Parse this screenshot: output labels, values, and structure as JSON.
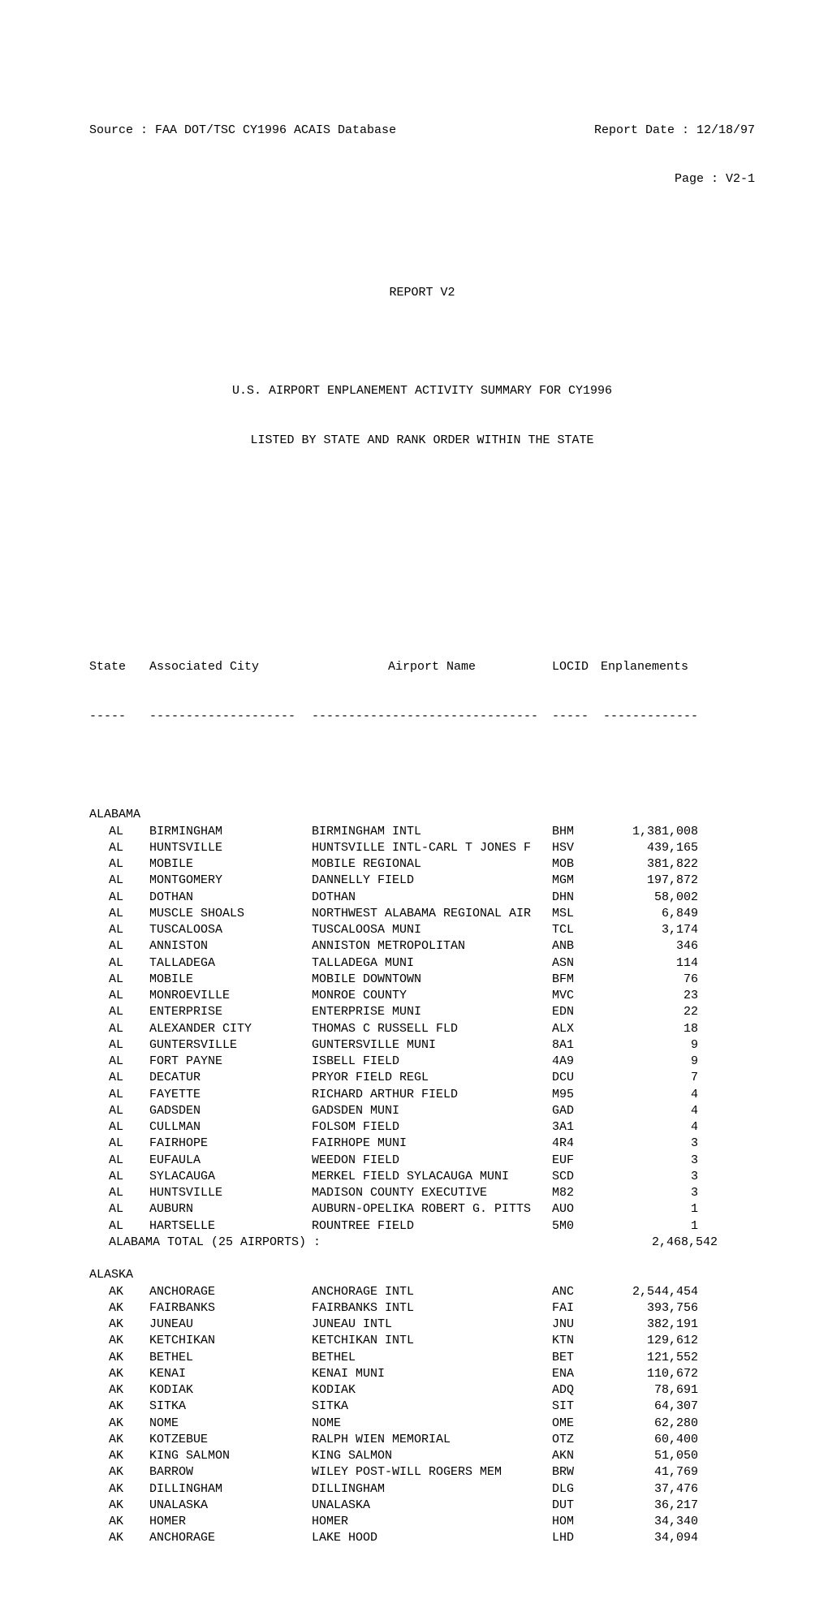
{
  "header": {
    "source_label": "Source : ",
    "source_value": "FAA DOT/TSC CY1996 ACAIS Database",
    "report_date_label": "Report Date : ",
    "report_date_value": "12/18/97",
    "page_label": "Page : ",
    "page_value": "V2-1"
  },
  "title": {
    "report_id": "REPORT V2",
    "line1": "U.S. AIRPORT ENPLANEMENT ACTIVITY SUMMARY FOR CY1996",
    "line2": "LISTED BY STATE AND RANK ORDER WITHIN THE STATE"
  },
  "columns": {
    "state": "State",
    "city": "Associated City",
    "airport": "Airport Name",
    "locid": "LOCID",
    "enplanements": "Enplanements",
    "underline_state": "-----",
    "underline_city": "--------------------",
    "underline_airport": "-------------------------------",
    "underline_locid": "-----",
    "underline_enp": "-------------"
  },
  "states": [
    {
      "name": "ALABAMA",
      "code": "AL",
      "total_label": "ALABAMA TOTAL (25 AIRPORTS) :",
      "total_value": "2,468,542",
      "rows": [
        {
          "city": "BIRMINGHAM",
          "airport": "BIRMINGHAM INTL",
          "locid": "BHM",
          "enp": "1,381,008"
        },
        {
          "city": "HUNTSVILLE",
          "airport": "HUNTSVILLE INTL-CARL T JONES F",
          "locid": "HSV",
          "enp": "439,165"
        },
        {
          "city": "MOBILE",
          "airport": "MOBILE REGIONAL",
          "locid": "MOB",
          "enp": "381,822"
        },
        {
          "city": "MONTGOMERY",
          "airport": "DANNELLY FIELD",
          "locid": "MGM",
          "enp": "197,872"
        },
        {
          "city": "DOTHAN",
          "airport": "DOTHAN",
          "locid": "DHN",
          "enp": "58,002"
        },
        {
          "city": "MUSCLE SHOALS",
          "airport": "NORTHWEST ALABAMA REGIONAL AIR",
          "locid": "MSL",
          "enp": "6,849"
        },
        {
          "city": "TUSCALOOSA",
          "airport": "TUSCALOOSA MUNI",
          "locid": "TCL",
          "enp": "3,174"
        },
        {
          "city": "ANNISTON",
          "airport": "ANNISTON METROPOLITAN",
          "locid": "ANB",
          "enp": "346"
        },
        {
          "city": "TALLADEGA",
          "airport": "TALLADEGA MUNI",
          "locid": "ASN",
          "enp": "114"
        },
        {
          "city": "MOBILE",
          "airport": "MOBILE DOWNTOWN",
          "locid": "BFM",
          "enp": "76"
        },
        {
          "city": "MONROEVILLE",
          "airport": "MONROE COUNTY",
          "locid": "MVC",
          "enp": "23"
        },
        {
          "city": "ENTERPRISE",
          "airport": "ENTERPRISE MUNI",
          "locid": "EDN",
          "enp": "22"
        },
        {
          "city": "ALEXANDER CITY",
          "airport": "THOMAS C RUSSELL FLD",
          "locid": "ALX",
          "enp": "18"
        },
        {
          "city": "GUNTERSVILLE",
          "airport": "GUNTERSVILLE MUNI",
          "locid": "8A1",
          "enp": "9"
        },
        {
          "city": "FORT PAYNE",
          "airport": "ISBELL FIELD",
          "locid": "4A9",
          "enp": "9"
        },
        {
          "city": "DECATUR",
          "airport": "PRYOR FIELD REGL",
          "locid": "DCU",
          "enp": "7"
        },
        {
          "city": "FAYETTE",
          "airport": "RICHARD ARTHUR FIELD",
          "locid": "M95",
          "enp": "4"
        },
        {
          "city": "GADSDEN",
          "airport": "GADSDEN MUNI",
          "locid": "GAD",
          "enp": "4"
        },
        {
          "city": "CULLMAN",
          "airport": "FOLSOM FIELD",
          "locid": "3A1",
          "enp": "4"
        },
        {
          "city": "FAIRHOPE",
          "airport": "FAIRHOPE MUNI",
          "locid": "4R4",
          "enp": "3"
        },
        {
          "city": "EUFAULA",
          "airport": "WEEDON FIELD",
          "locid": "EUF",
          "enp": "3"
        },
        {
          "city": "SYLACAUGA",
          "airport": "MERKEL FIELD SYLACAUGA MUNI",
          "locid": "SCD",
          "enp": "3"
        },
        {
          "city": "HUNTSVILLE",
          "airport": "MADISON COUNTY EXECUTIVE",
          "locid": "M82",
          "enp": "3"
        },
        {
          "city": "AUBURN",
          "airport": "AUBURN-OPELIKA ROBERT G. PITTS",
          "locid": "AUO",
          "enp": "1"
        },
        {
          "city": "HARTSELLE",
          "airport": "ROUNTREE FIELD",
          "locid": "5M0",
          "enp": "1"
        }
      ]
    },
    {
      "name": "ALASKA",
      "code": "AK",
      "rows": [
        {
          "city": "ANCHORAGE",
          "airport": "ANCHORAGE INTL",
          "locid": "ANC",
          "enp": "2,544,454"
        },
        {
          "city": "FAIRBANKS",
          "airport": "FAIRBANKS INTL",
          "locid": "FAI",
          "enp": "393,756"
        },
        {
          "city": "JUNEAU",
          "airport": "JUNEAU INTL",
          "locid": "JNU",
          "enp": "382,191"
        },
        {
          "city": "KETCHIKAN",
          "airport": "KETCHIKAN INTL",
          "locid": "KTN",
          "enp": "129,612"
        },
        {
          "city": "BETHEL",
          "airport": "BETHEL",
          "locid": "BET",
          "enp": "121,552"
        },
        {
          "city": "KENAI",
          "airport": "KENAI MUNI",
          "locid": "ENA",
          "enp": "110,672"
        },
        {
          "city": "KODIAK",
          "airport": "KODIAK",
          "locid": "ADQ",
          "enp": "78,691"
        },
        {
          "city": "SITKA",
          "airport": "SITKA",
          "locid": "SIT",
          "enp": "64,307"
        },
        {
          "city": "NOME",
          "airport": "NOME",
          "locid": "OME",
          "enp": "62,280"
        },
        {
          "city": "KOTZEBUE",
          "airport": "RALPH WIEN MEMORIAL",
          "locid": "OTZ",
          "enp": "60,400"
        },
        {
          "city": "KING SALMON",
          "airport": "KING SALMON",
          "locid": "AKN",
          "enp": "51,050"
        },
        {
          "city": "BARROW",
          "airport": "WILEY POST-WILL ROGERS MEM",
          "locid": "BRW",
          "enp": "41,769"
        },
        {
          "city": "DILLINGHAM",
          "airport": "DILLINGHAM",
          "locid": "DLG",
          "enp": "37,476"
        },
        {
          "city": "UNALASKA",
          "airport": "UNALASKA",
          "locid": "DUT",
          "enp": "36,217"
        },
        {
          "city": "HOMER",
          "airport": "HOMER",
          "locid": "HOM",
          "enp": "34,340"
        },
        {
          "city": "ANCHORAGE",
          "airport": "LAKE HOOD",
          "locid": "LHD",
          "enp": "34,094"
        }
      ]
    }
  ]
}
